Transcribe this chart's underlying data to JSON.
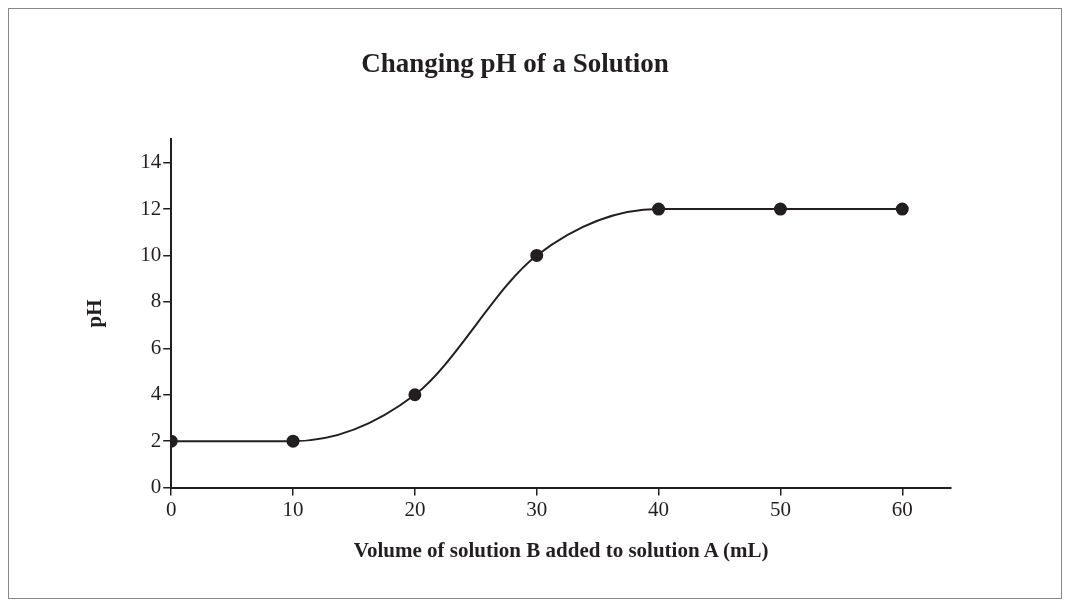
{
  "chart_data": {
    "type": "line",
    "title": "Changing pH of a Solution",
    "xlabel": "Volume of solution B added to solution A (mL)",
    "ylabel": "pH",
    "x": [
      0,
      10,
      20,
      30,
      40,
      50,
      60
    ],
    "series": [
      {
        "color": "#231f20",
        "values": [
          2,
          2,
          4,
          10,
          12,
          12,
          12
        ]
      }
    ],
    "xlim": [
      0,
      64
    ],
    "xticks": [
      0,
      10,
      20,
      30,
      40,
      50,
      60
    ],
    "ylim": [
      0,
      15
    ],
    "yticks": [
      0,
      2,
      4,
      6,
      8,
      10,
      12,
      14
    ],
    "marker": "circle",
    "line_style": "solid"
  }
}
